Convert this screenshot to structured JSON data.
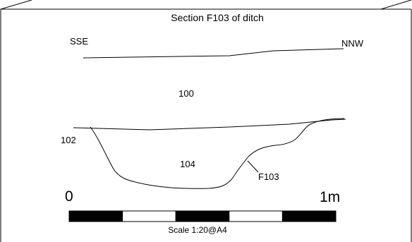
{
  "diagram": {
    "title": "Section F103 of ditch",
    "orientation": {
      "left": "SSE",
      "right": "NNW"
    },
    "layers": {
      "top": "100",
      "left_edge": "102",
      "fill": "104"
    },
    "feature_label": "F103",
    "scale": {
      "start_label": "0",
      "end_label": "1m",
      "caption": "Scale 1:20@A4",
      "segment_count": 5,
      "segment_colors": [
        "#000000",
        "#ffffff",
        "#000000",
        "#ffffff",
        "#000000"
      ]
    },
    "colors": {
      "line": "#000000",
      "background": "#ffffff"
    }
  }
}
